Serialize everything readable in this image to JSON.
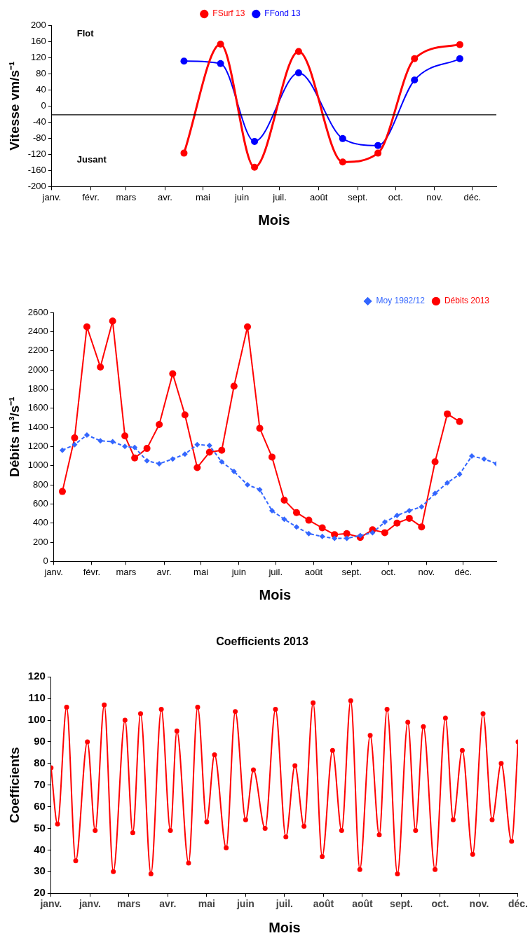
{
  "chart_data": [
    {
      "type": "line",
      "xlabel": "Mois",
      "ylabel": "Vitesse vm/s⁻¹",
      "legend": "top",
      "marker": "circle",
      "x": [
        "--04-16",
        "--05-15",
        "--06-11",
        "--07-16",
        "--08-20",
        "--09-17",
        "--10-16",
        "--11-21"
      ],
      "xlim": [
        "--01-01",
        "--12-20"
      ],
      "xticks": [
        {
          "value": "--01-01",
          "label": "janv."
        },
        {
          "value": "--02-01",
          "label": "févr."
        },
        {
          "value": "--03-01",
          "label": "mars"
        },
        {
          "value": "--04-01",
          "label": "avr."
        },
        {
          "value": "--05-01",
          "label": "mai"
        },
        {
          "value": "--06-01",
          "label": "juin"
        },
        {
          "value": "--07-01",
          "label": "juil."
        },
        {
          "value": "--08-01",
          "label": "août"
        },
        {
          "value": "--09-01",
          "label": "sept."
        },
        {
          "value": "--10-01",
          "label": "oct."
        },
        {
          "value": "--11-01",
          "label": "nov."
        },
        {
          "value": "--12-01",
          "label": "déc."
        }
      ],
      "ylim": [
        -200,
        200
      ],
      "yticks": [
        -200,
        -160,
        -120,
        -80,
        -40,
        0,
        40,
        80,
        120,
        160,
        200
      ],
      "series": [
        {
          "name": "FSurf 13",
          "color": "#ff0000",
          "values": [
            -117,
            153,
            -152,
            135,
            -139,
            -117,
            117,
            152
          ]
        },
        {
          "name": "FFond 13",
          "color": "#0000ff",
          "values": [
            111,
            105,
            -88,
            82,
            -81,
            -98,
            64,
            117
          ]
        }
      ],
      "ref_lines": [
        {
          "axis": "y",
          "value": -22
        }
      ],
      "annotations": [
        "Flot",
        "Jusant"
      ]
    },
    {
      "type": "line",
      "xlabel": "Mois",
      "ylabel": "Débits m³/s⁻¹",
      "legend": "top right",
      "x": [
        "--01-08",
        "--01-18",
        "--01-28",
        "--02-08",
        "--02-18",
        "--02-28",
        "--03-08",
        "--03-18",
        "--03-28",
        "--04-08",
        "--04-18",
        "--04-28",
        "--05-08",
        "--05-18",
        "--05-28",
        "--06-08",
        "--06-18",
        "--06-28",
        "--07-08",
        "--07-18",
        "--07-28",
        "--08-08",
        "--08-18",
        "--08-28",
        "--09-08",
        "--09-18",
        "--09-28",
        "--10-08",
        "--10-18",
        "--10-28",
        "--11-08",
        "--11-18",
        "--11-28",
        "--12-08",
        "--12-18",
        "--12-28"
      ],
      "xlim": [
        "--01-01",
        "--12-28"
      ],
      "xticks": [
        {
          "value": "--01-01",
          "label": "janv."
        },
        {
          "value": "--02-01",
          "label": "févr."
        },
        {
          "value": "--03-01",
          "label": "mars"
        },
        {
          "value": "--04-01",
          "label": "avr."
        },
        {
          "value": "--05-01",
          "label": "mai"
        },
        {
          "value": "--06-01",
          "label": "juin"
        },
        {
          "value": "--07-01",
          "label": "juil."
        },
        {
          "value": "--08-01",
          "label": "août"
        },
        {
          "value": "--09-01",
          "label": "sept."
        },
        {
          "value": "--10-01",
          "label": "oct."
        },
        {
          "value": "--11-01",
          "label": "nov."
        },
        {
          "value": "--12-01",
          "label": "déc."
        }
      ],
      "ylim": [
        0,
        2600
      ],
      "yticks": [
        0,
        200,
        400,
        600,
        800,
        1000,
        1200,
        1400,
        1600,
        1800,
        2000,
        2200,
        2400,
        2600
      ],
      "series": [
        {
          "name": "Moy 1982/12",
          "color": "#3366ff",
          "marker": "diamond",
          "line_style": "dashed",
          "values": [
            1160,
            1220,
            1320,
            1260,
            1250,
            1200,
            1190,
            1050,
            1020,
            1070,
            1120,
            1220,
            1210,
            1040,
            940,
            800,
            750,
            530,
            440,
            360,
            290,
            260,
            240,
            240,
            270,
            300,
            410,
            480,
            530,
            570,
            710,
            820,
            910,
            1100,
            1070,
            1020
          ]
        },
        {
          "name": "Débits 2013",
          "color": "#ff0000",
          "marker": "circle",
          "line_style": "solid",
          "values": [
            730,
            1290,
            2450,
            2030,
            2510,
            1310,
            1080,
            1180,
            1430,
            1960,
            1530,
            980,
            1140,
            1160,
            1830,
            2450,
            1390,
            1090,
            640,
            510,
            430,
            350,
            280,
            290,
            250,
            330,
            300,
            400,
            450,
            360,
            1040,
            1540,
            1460,
            null,
            null,
            null
          ]
        }
      ]
    },
    {
      "type": "line",
      "title": "Coefficients 2013",
      "xlabel": "Mois",
      "ylabel": "Coefficients",
      "marker": "circle",
      "color": "#ff0000",
      "x": [
        "--01-01",
        "--01-06",
        "--01-13",
        "--01-20",
        "--01-29",
        "--02-04",
        "--02-11",
        "--02-18",
        "--02-27",
        "--03-05",
        "--03-11",
        "--03-19",
        "--03-27",
        "--04-03",
        "--04-08",
        "--04-17",
        "--04-24",
        "--05-01",
        "--05-07",
        "--05-16",
        "--05-23",
        "--05-31",
        "--06-06",
        "--06-15",
        "--06-23",
        "--07-01",
        "--07-08",
        "--07-15",
        "--07-22",
        "--07-29",
        "--08-06",
        "--08-13",
        "--08-20",
        "--08-27",
        "--09-04",
        "--09-11",
        "--09-17",
        "--09-25",
        "--10-03",
        "--10-09",
        "--10-15",
        "--10-24",
        "--11-01",
        "--11-07",
        "--11-14",
        "--11-22",
        "--11-30",
        "--12-07",
        "--12-14",
        "--12-22",
        "--12-27"
      ],
      "values": [
        78,
        52,
        106,
        35,
        90,
        49,
        107,
        30,
        100,
        48,
        103,
        29,
        105,
        49,
        95,
        34,
        106,
        53,
        84,
        41,
        104,
        54,
        77,
        50,
        105,
        46,
        79,
        51,
        108,
        37,
        86,
        49,
        109,
        31,
        93,
        47,
        105,
        29,
        99,
        49,
        97,
        31,
        101,
        54,
        86,
        38,
        103,
        54,
        80,
        44,
        90
      ],
      "xlim": [
        "--01-01",
        "--12-27"
      ],
      "xticks": [
        {
          "value": "--01-01",
          "label": "janv."
        },
        {
          "value": "--01-31",
          "label": "janv."
        },
        {
          "value": "--03-02",
          "label": "mars"
        },
        {
          "value": "--04-01",
          "label": "avr."
        },
        {
          "value": "--05-01",
          "label": "mai"
        },
        {
          "value": "--05-31",
          "label": "juin"
        },
        {
          "value": "--06-30",
          "label": "juil."
        },
        {
          "value": "--07-30",
          "label": "août"
        },
        {
          "value": "--08-29",
          "label": "août"
        },
        {
          "value": "--09-28",
          "label": "sept."
        },
        {
          "value": "--10-28",
          "label": "oct."
        },
        {
          "value": "--11-27",
          "label": "nov."
        },
        {
          "value": "--12-27",
          "label": "déc."
        }
      ],
      "ylim": [
        20,
        120
      ],
      "yticks": [
        20,
        30,
        40,
        50,
        60,
        70,
        80,
        90,
        100,
        110,
        120
      ]
    }
  ]
}
